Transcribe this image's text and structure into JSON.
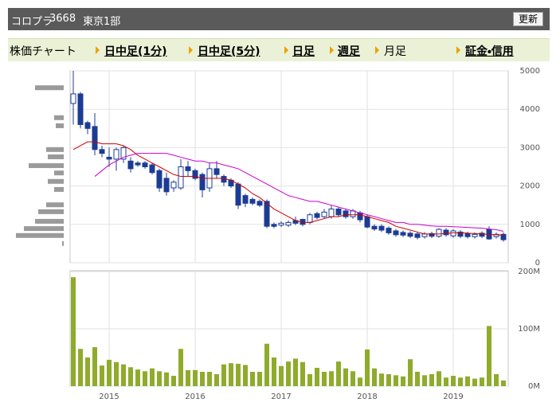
{
  "header": {
    "name": "コロプラ",
    "code": "3668",
    "market": "東京1部",
    "button": "更新"
  },
  "tabs": [
    "株価チャート",
    "日中足(1分)",
    "日中足(5分)",
    "日足",
    "週足",
    "月足",
    "証金・信用"
  ],
  "chart_data": [
    {
      "type": "candlestick",
      "open": [
        4150,
        4400,
        3650,
        3550,
        2950,
        2750,
        2700,
        2700,
        2650,
        2600,
        2600,
        2550,
        2400,
        2200,
        1950,
        1950,
        2500,
        2400,
        2300,
        1950,
        2450,
        2250,
        2150,
        2050,
        1750,
        1650,
        1600,
        1600,
        1000,
        980,
        980,
        1100,
        1130,
        1050,
        1280,
        1200,
        1200,
        1400,
        1350,
        1200,
        1300,
        1200,
        950,
        950,
        900,
        830,
        790,
        770,
        750,
        680,
        760,
        690,
        850,
        700,
        800,
        760,
        680,
        770,
        870,
        680,
        740
      ],
      "high": [
        5000,
        4450,
        3700,
        3900,
        3050,
        3000,
        3000,
        3050,
        2750,
        2650,
        2650,
        2600,
        2450,
        2350,
        2150,
        2700,
        2650,
        2450,
        2350,
        2600,
        2650,
        2300,
        2200,
        2100,
        1800,
        1700,
        1650,
        1650,
        1050,
        1080,
        1100,
        1200,
        1150,
        1300,
        1330,
        1400,
        1500,
        1450,
        1400,
        1400,
        1350,
        1250,
        1000,
        1000,
        950,
        880,
        840,
        820,
        800,
        800,
        810,
        900,
        900,
        880,
        850,
        810,
        790,
        820,
        950,
        790,
        790
      ],
      "low": [
        3600,
        3500,
        3350,
        2800,
        2750,
        2500,
        2400,
        2600,
        2350,
        2500,
        2450,
        2300,
        1850,
        1750,
        1850,
        1900,
        2250,
        2150,
        1700,
        1850,
        2200,
        2000,
        1950,
        1400,
        1450,
        1500,
        1450,
        900,
        900,
        930,
        930,
        980,
        950,
        1000,
        1130,
        1150,
        1150,
        1200,
        1150,
        1150,
        1050,
        900,
        830,
        800,
        730,
        680,
        670,
        640,
        610,
        630,
        640,
        650,
        680,
        650,
        640,
        630,
        630,
        640,
        600,
        630,
        550
      ],
      "close": [
        4400,
        3600,
        3500,
        2950,
        2850,
        2700,
        2950,
        3000,
        2450,
        2550,
        2500,
        2350,
        1950,
        1850,
        2100,
        2500,
        2400,
        2200,
        1900,
        2450,
        2300,
        2100,
        2000,
        1500,
        1550,
        1550,
        1500,
        950,
        950,
        1030,
        1050,
        1030,
        1000,
        1250,
        1180,
        1320,
        1400,
        1250,
        1200,
        1350,
        1120,
        930,
        880,
        850,
        780,
        730,
        720,
        690,
        660,
        750,
        690,
        870,
        730,
        830,
        690,
        680,
        740,
        690,
        620,
        740,
        600
      ],
      "up_color": "#ffffff",
      "down_color": "#1c3c94",
      "edge_color": "#1c3c94",
      "series": [
        {
          "color": "#cc0000",
          "values": [
            2950,
            3050,
            3150,
            3150,
            3100,
            3100,
            3100,
            3050,
            2950,
            2800,
            2700,
            2600,
            2500,
            2400,
            2300,
            2250,
            2250,
            2250,
            2200,
            2200,
            2200,
            2200,
            2150,
            2050,
            1950,
            1800,
            1700,
            1550,
            1400,
            1300,
            1200,
            1100,
            1050,
            1050,
            1100,
            1150,
            1200,
            1200,
            1250,
            1250,
            1250,
            1200,
            1150,
            1100,
            1050,
            950,
            900,
            850,
            800,
            750,
            750,
            750,
            760,
            780,
            780,
            770,
            760,
            750,
            740,
            730,
            720
          ]
        },
        {
          "color": "#cc00cc",
          "values": [
            null,
            null,
            null,
            2250,
            2400,
            2550,
            2650,
            2750,
            2800,
            2850,
            2850,
            2850,
            2850,
            2850,
            2800,
            2750,
            2700,
            2650,
            2650,
            2600,
            2600,
            2550,
            2500,
            2450,
            2350,
            2250,
            2150,
            2050,
            1950,
            1850,
            1750,
            1700,
            1650,
            1600,
            1600,
            1550,
            1500,
            1450,
            1400,
            1350,
            1300,
            1250,
            1200,
            1150,
            1100,
            1050,
            1050,
            1000,
            1000,
            980,
            960,
            950,
            950,
            940,
            930,
            920,
            910,
            900,
            880,
            860,
            820
          ]
        }
      ],
      "volume_profile": {
        "color": "#9a9a9a",
        "levels": [
          4560,
          3780,
          3570,
          2950,
          2760,
          2530,
          2340,
          2120,
          1910,
          1510,
          1330,
          1080,
          890,
          710,
          500
        ],
        "values": [
          36,
          12,
          10,
          22,
          20,
          44,
          12,
          20,
          12,
          22,
          32,
          36,
          50,
          60,
          2
        ]
      },
      "ylim": [
        0,
        5000
      ],
      "yticks": [
        0,
        1000,
        2000,
        3000,
        4000,
        5000
      ],
      "grid": true
    },
    {
      "type": "bar",
      "color": "#8fab2c",
      "categories": [
        null,
        null,
        null,
        null,
        null,
        "2015",
        null,
        null,
        null,
        null,
        null,
        null,
        null,
        null,
        null,
        null,
        null,
        "2016",
        null,
        null,
        null,
        null,
        null,
        null,
        null,
        null,
        null,
        null,
        null,
        "2017",
        null,
        null,
        null,
        null,
        null,
        null,
        null,
        null,
        null,
        null,
        null,
        "2018",
        null,
        null,
        null,
        null,
        null,
        null,
        null,
        null,
        null,
        null,
        null,
        "2019",
        null,
        null,
        null,
        null,
        null,
        null,
        null
      ],
      "values": [
        190,
        65,
        50,
        68,
        36,
        46,
        42,
        38,
        33,
        29,
        26,
        31,
        26,
        24,
        18,
        65,
        28,
        28,
        25,
        25,
        21,
        38,
        40,
        39,
        37,
        25,
        25,
        74,
        50,
        35,
        43,
        48,
        42,
        21,
        32,
        25,
        26,
        43,
        31,
        26,
        15,
        64,
        31,
        22,
        21,
        19,
        17,
        47,
        25,
        19,
        21,
        26,
        15,
        18,
        15,
        17,
        13,
        15,
        105,
        21,
        10
      ],
      "ylim": [
        0,
        200
      ],
      "yticks": [
        {
          "value": 0,
          "label": "0M"
        },
        {
          "value": 100,
          "label": "100M"
        },
        {
          "value": 200,
          "label": "200M"
        }
      ],
      "grid": true
    }
  ]
}
